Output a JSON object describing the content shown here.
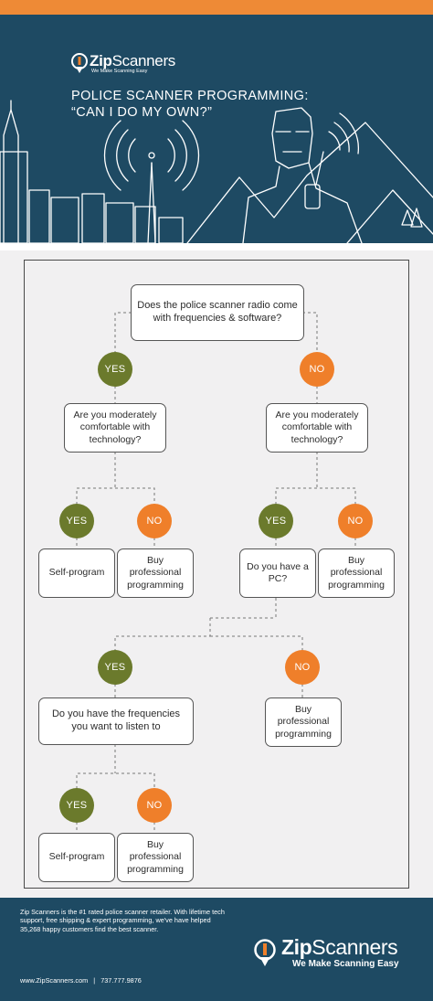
{
  "brand": {
    "name_bold": "Zip",
    "name_light": "Scanners",
    "tagline": "We Make Scanning Easy"
  },
  "header": {
    "title_line1": "POLICE SCANNER PROGRAMMING:",
    "title_line2": "“CAN I DO MY OWN?”"
  },
  "flowchart": {
    "q1": "Does the police scanner radio come with frequencies & software?",
    "q2_yes": "Are you moderately comfortable with technology?",
    "q2_no": "Are you moderately comfortable with technology?",
    "self_program_1": "Self-program",
    "buy_pro_1": "Buy professional programming",
    "have_pc": "Do you have a PC?",
    "buy_pro_2": "Buy professional programming",
    "have_freq": "Do you have the frequencies you want to listen to",
    "buy_pro_3": "Buy professional programming",
    "self_program_2": "Self-program",
    "buy_pro_4": "Buy professional programming",
    "yes_label": "YES",
    "no_label": "NO"
  },
  "footer": {
    "blurb": "Zip Scanners is the #1 rated police scanner retailer. With lifetime tech support, free shipping & expert programming, we've have helped 35,268 happy customers find the best scanner.",
    "website": "www.ZipScanners.com",
    "divider": "|",
    "phone": "737.777.9876"
  },
  "colors": {
    "navy": "#1e4a63",
    "orange": "#ef7f2a",
    "olive": "#6b7a2c",
    "panel": "#f1f0f1"
  },
  "icons": [
    "logo-mark-icon",
    "city-skyline-illustration",
    "radio-tower-icon",
    "officer-with-radio-illustration",
    "mountain-icon"
  ]
}
